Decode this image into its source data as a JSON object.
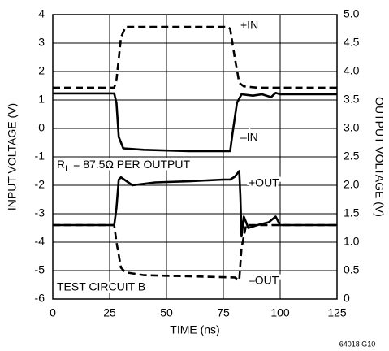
{
  "chart_data": {
    "type": "line",
    "xlabel": "TIME (ns)",
    "ylabel": "INPUT VOLTAGE (V)",
    "y2label": "OUTPUT VOLTAGE (V)",
    "xlim": [
      0,
      125
    ],
    "xticks": [
      0,
      25,
      50,
      75,
      100,
      125
    ],
    "ylim": [
      -6,
      4
    ],
    "yticks": [
      -6,
      -5,
      -4,
      -3,
      -2,
      -1,
      0,
      1,
      2,
      3,
      4
    ],
    "y2lim": [
      0,
      5
    ],
    "y2ticks": [
      0,
      0.5,
      {
        "value": 1,
        "label": "1.0"
      },
      1.5,
      {
        "value": 2,
        "label": "2.0"
      },
      2.5,
      {
        "value": 3,
        "label": "3.0"
      },
      3.5,
      {
        "value": 4,
        "label": "4.0"
      },
      4.5,
      {
        "value": 5,
        "label": "5.0"
      }
    ],
    "grid": true,
    "series": [
      {
        "name": "+IN",
        "color": "#000000",
        "dashed": true,
        "x": [
          0,
          27,
          28,
          30,
          32,
          40,
          60,
          77,
          78,
          80,
          82,
          84,
          90,
          125
        ],
        "values": [
          1.43,
          1.43,
          1.7,
          3.2,
          3.57,
          3.57,
          3.57,
          3.57,
          3.5,
          2.5,
          1.6,
          1.48,
          1.43,
          1.43
        ]
      },
      {
        "name": "–IN",
        "color": "#000000",
        "dashed": false,
        "x": [
          0,
          27,
          28,
          29,
          31,
          40,
          60,
          78,
          79,
          81,
          83,
          88,
          92,
          96,
          98,
          100,
          125
        ],
        "values": [
          1.23,
          1.23,
          0.9,
          -0.3,
          -0.7,
          -0.75,
          -0.8,
          -0.8,
          -0.2,
          0.9,
          1.2,
          1.15,
          1.2,
          1.1,
          1.25,
          1.2,
          1.2
        ]
      },
      {
        "name": "+OUT",
        "color": "#000000",
        "dashed": false,
        "axis": "y2",
        "x": [
          0,
          27,
          28,
          29,
          30,
          35,
          45,
          60,
          75,
          78,
          80,
          82,
          82.5,
          83,
          84,
          86,
          90,
          95,
          98,
          100,
          125
        ],
        "values": [
          1.3,
          1.3,
          1.6,
          2.1,
          2.14,
          2.0,
          2.05,
          2.07,
          2.1,
          2.1,
          2.15,
          2.25,
          1.8,
          1.1,
          1.45,
          1.25,
          1.3,
          1.35,
          1.45,
          1.3,
          1.3
        ]
      },
      {
        "name": "–OUT",
        "color": "#000000",
        "dashed": true,
        "axis": "y2",
        "x": [
          0,
          27,
          28,
          30,
          32,
          40,
          60,
          80,
          82,
          83,
          85,
          125
        ],
        "values": [
          1.3,
          1.3,
          1.0,
          0.55,
          0.47,
          0.42,
          0.4,
          0.38,
          0.33,
          0.9,
          1.3,
          1.3
        ]
      }
    ],
    "annotations": [
      [
        "R",
        "L",
        " = 87.5Ω PER OUTPUT"
      ],
      "TEST CIRCUIT B",
      "64018 G10"
    ]
  }
}
